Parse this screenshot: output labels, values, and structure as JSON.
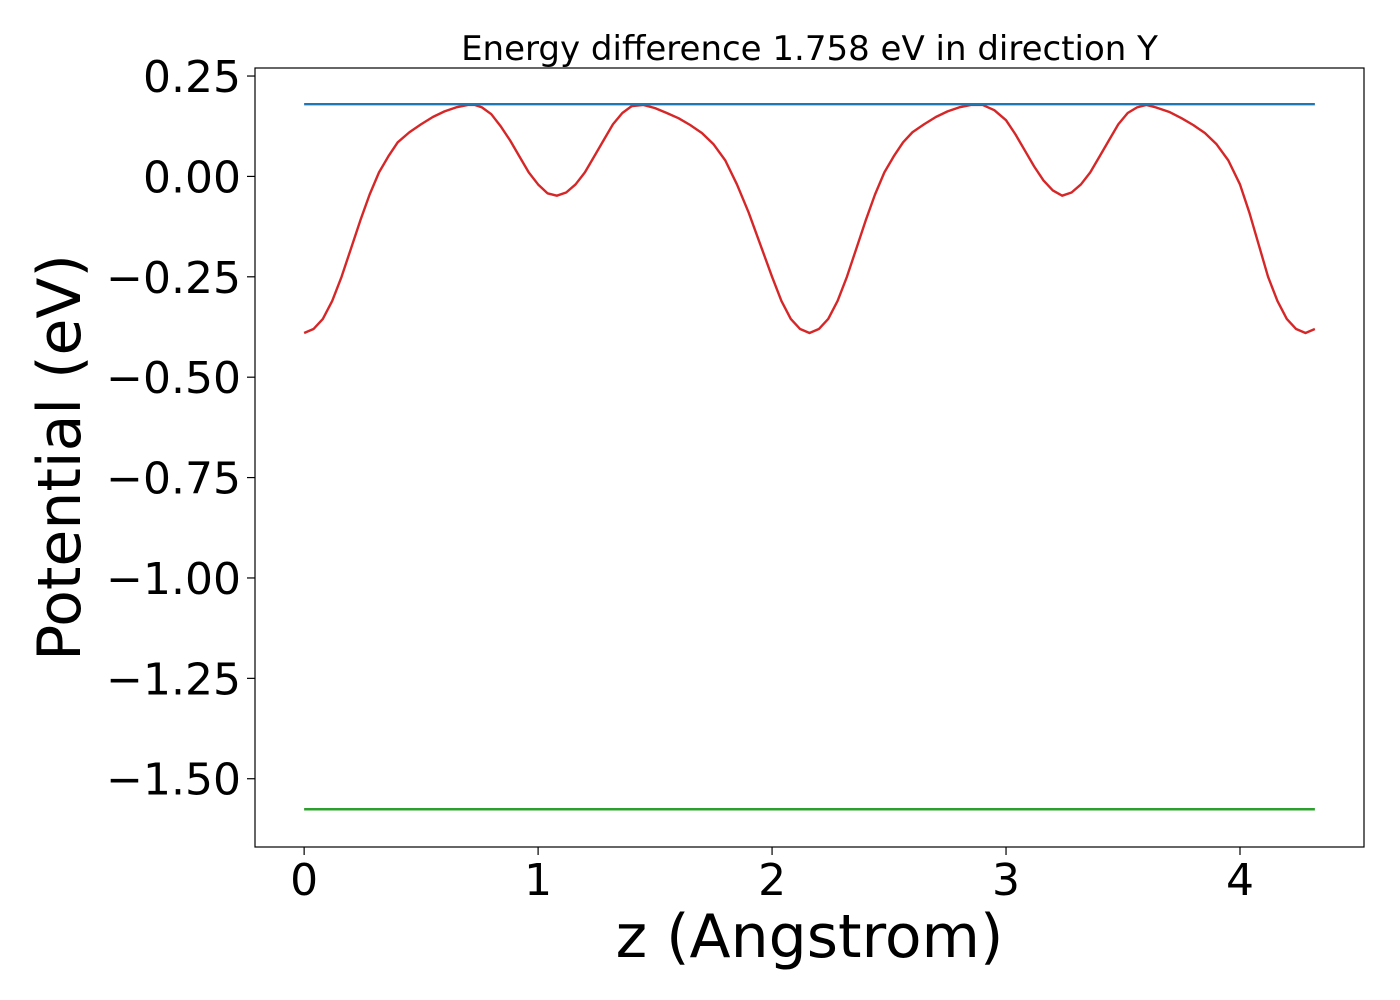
{
  "chart_data": {
    "type": "line",
    "title": "Energy difference 1.758 eV in direction Y",
    "xlabel": "z (Angstrom)",
    "ylabel": "Potential (eV)",
    "xlim": [
      -0.21,
      4.53
    ],
    "ylim": [
      -1.67,
      0.27
    ],
    "xticks": [
      0,
      1,
      2,
      3,
      4
    ],
    "yticks": [
      0.25,
      0.0,
      -0.25,
      -0.5,
      -0.75,
      -1.0,
      -1.25,
      -1.5
    ],
    "ytick_labels": [
      "0.25",
      "0.00",
      "−0.25",
      "−0.50",
      "−0.75",
      "−1.00",
      "−1.25",
      "−1.50"
    ],
    "xtick_labels": [
      "0",
      "1",
      "2",
      "3",
      "4"
    ],
    "grid": false,
    "series": [
      {
        "color": "#d62728",
        "x": [
          0.0,
          0.04,
          0.08,
          0.12,
          0.16,
          0.2,
          0.24,
          0.28,
          0.32,
          0.36,
          0.4,
          0.45,
          0.5,
          0.55,
          0.6,
          0.65,
          0.7,
          0.73,
          0.76,
          0.8,
          0.84,
          0.88,
          0.92,
          0.96,
          1.0,
          1.04,
          1.08,
          1.12,
          1.16,
          1.2,
          1.24,
          1.28,
          1.32,
          1.36,
          1.4,
          1.45,
          1.5,
          1.55,
          1.6,
          1.65,
          1.7,
          1.75,
          1.8,
          1.85,
          1.9,
          1.95,
          2.0,
          2.04,
          2.08,
          2.12,
          2.16,
          2.2,
          2.24,
          2.28,
          2.32,
          2.36,
          2.4,
          2.44,
          2.48,
          2.52,
          2.56,
          2.6,
          2.65,
          2.7,
          2.75,
          2.8,
          2.85,
          2.9,
          2.95,
          3.0,
          3.04,
          3.08,
          3.12,
          3.16,
          3.2,
          3.24,
          3.28,
          3.32,
          3.36,
          3.4,
          3.44,
          3.48,
          3.52,
          3.56,
          3.6,
          3.64,
          3.7,
          3.75,
          3.8,
          3.85,
          3.9,
          3.95,
          4.0,
          4.04,
          4.08,
          4.12,
          4.16,
          4.2,
          4.24,
          4.28,
          4.32
        ],
        "y": [
          -0.39,
          -0.38,
          -0.355,
          -0.31,
          -0.25,
          -0.18,
          -0.11,
          -0.045,
          0.01,
          0.05,
          0.085,
          0.11,
          0.13,
          0.148,
          0.162,
          0.172,
          0.178,
          0.178,
          0.172,
          0.155,
          0.125,
          0.09,
          0.05,
          0.01,
          -0.02,
          -0.042,
          -0.048,
          -0.04,
          -0.02,
          0.01,
          0.05,
          0.09,
          0.13,
          0.158,
          0.175,
          0.178,
          0.17,
          0.158,
          0.145,
          0.128,
          0.108,
          0.08,
          0.04,
          -0.02,
          -0.09,
          -0.17,
          -0.25,
          -0.31,
          -0.355,
          -0.38,
          -0.39,
          -0.38,
          -0.355,
          -0.31,
          -0.25,
          -0.18,
          -0.11,
          -0.045,
          0.01,
          0.05,
          0.085,
          0.11,
          0.13,
          0.148,
          0.162,
          0.172,
          0.178,
          0.178,
          0.165,
          0.14,
          0.105,
          0.065,
          0.025,
          -0.01,
          -0.035,
          -0.048,
          -0.04,
          -0.02,
          0.01,
          0.05,
          0.09,
          0.13,
          0.158,
          0.172,
          0.178,
          0.172,
          0.16,
          0.145,
          0.128,
          0.108,
          0.08,
          0.04,
          -0.02,
          -0.09,
          -0.17,
          -0.25,
          -0.31,
          -0.355,
          -0.38,
          -0.39,
          -0.38
        ]
      },
      {
        "color": "#1f77b4",
        "x": [
          0.0,
          4.32
        ],
        "y": [
          0.18,
          0.18
        ]
      },
      {
        "color": "#2ca02c",
        "x": [
          0.0,
          4.32
        ],
        "y": [
          -1.576,
          -1.576
        ]
      }
    ]
  }
}
